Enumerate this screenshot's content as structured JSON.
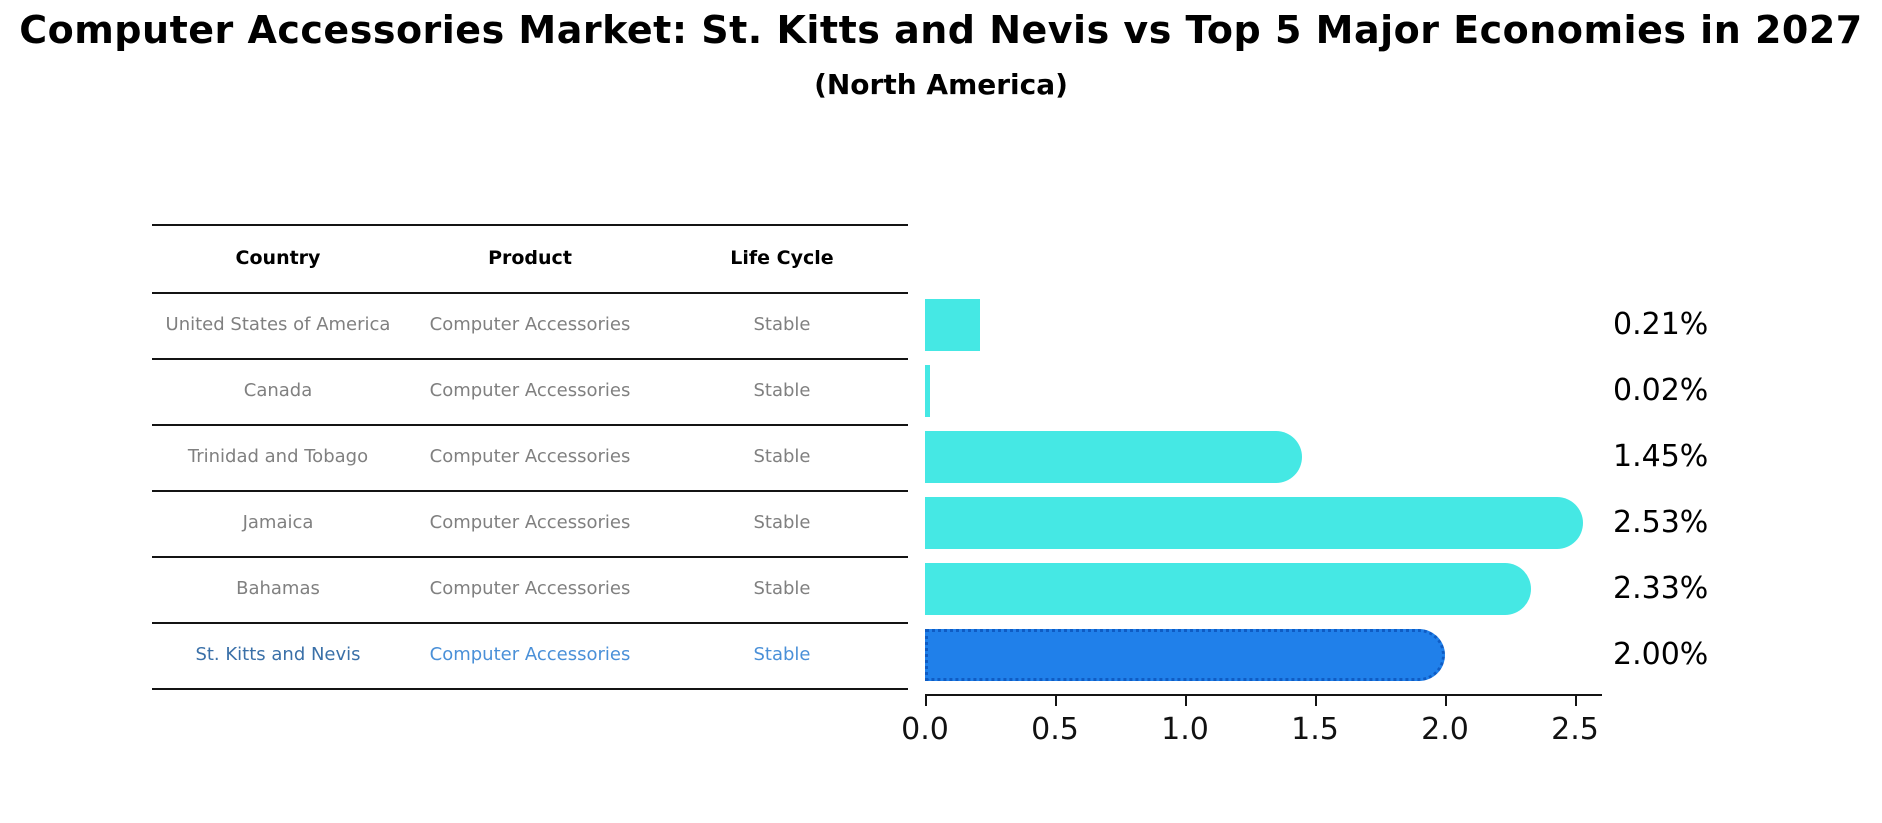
{
  "title": "Computer Accessories Market: St. Kitts and Nevis vs Top 5 Major Economies in 2027",
  "subtitle": "(North America)",
  "table": {
    "headers": [
      "Country",
      "Product",
      "Life Cycle"
    ],
    "rows": [
      {
        "country": "United States of America",
        "product": "Computer Accessories",
        "life_cycle": "Stable",
        "highlighted": false
      },
      {
        "country": "Canada",
        "product": "Computer Accessories",
        "life_cycle": "Stable",
        "highlighted": false
      },
      {
        "country": "Trinidad and Tobago",
        "product": "Computer Accessories",
        "life_cycle": "Stable",
        "highlighted": false
      },
      {
        "country": "Jamaica",
        "product": "Computer Accessories",
        "life_cycle": "Stable",
        "highlighted": false
      },
      {
        "country": "Bahamas",
        "product": "Computer Accessories",
        "life_cycle": "Stable",
        "highlighted": false
      },
      {
        "country": "St. Kitts and Nevis",
        "product": "Computer Accessories",
        "life_cycle": "Stable",
        "highlighted": true
      }
    ]
  },
  "chart_data": {
    "type": "bar",
    "orientation": "horizontal",
    "title": "Computer Accessories Market: St. Kitts and Nevis vs Top 5 Major Economies in 2027",
    "subtitle": "(North America)",
    "categories": [
      "United States of America",
      "Canada",
      "Trinidad and Tobago",
      "Jamaica",
      "Bahamas",
      "St. Kitts and Nevis"
    ],
    "values": [
      0.21,
      0.02,
      1.45,
      2.53,
      2.33,
      2.0
    ],
    "value_labels": [
      "0.21%",
      "0.02%",
      "1.45%",
      "2.53%",
      "2.33%",
      "2.00%"
    ],
    "highlighted_category": "St. Kitts and Nevis",
    "xticks": [
      "0.0",
      "0.5",
      "1.0",
      "1.5",
      "2.0",
      "2.5"
    ],
    "xtick_values": [
      0.0,
      0.5,
      1.0,
      1.5,
      2.0,
      2.5
    ],
    "xlim": [
      0,
      2.6
    ],
    "grid": false,
    "legend": null,
    "colors": {
      "bar": "#45E8E4",
      "highlight_bar": "#2080EA",
      "highlight_bar_border": "#0F5CC4",
      "axis": "#141414",
      "table_text": "#808080",
      "table_header_text": "#000000",
      "highlight_country_text": "#3A70A8",
      "highlight_row_text": "#4A90D8"
    }
  }
}
